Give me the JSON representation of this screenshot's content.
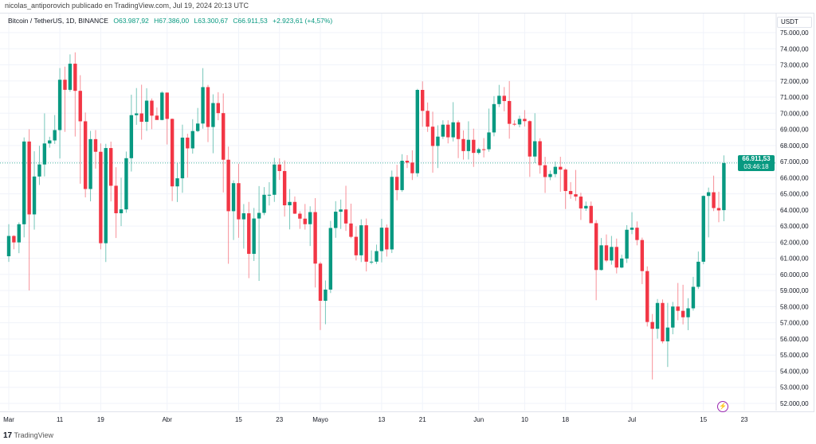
{
  "header": {
    "published": "nicolas_antiporovich publicado en TradingView.com, Jul 19, 2024 20:13 UTC"
  },
  "legend": {
    "symbol": "Bitcoin / TetherUS, 1D, BINANCE",
    "open": "O63.987,92",
    "high": "H67.386,00",
    "low": "L63.300,67",
    "close": "C66.911,53",
    "change": "+2.923,61 (+4,57%)"
  },
  "price_axis": {
    "currency": "USDT",
    "current_price": "66.911,53",
    "countdown": "03:46:18"
  },
  "footer": {
    "logo": "TradingView",
    "logo_mark": "17"
  },
  "colors": {
    "up": "#089981",
    "down": "#f23645",
    "grid": "#f0f3fa"
  },
  "chart_data": {
    "type": "candlestick",
    "title": "Bitcoin / TetherUS, 1D, BINANCE",
    "ylim": [
      51500,
      75500
    ],
    "yticks": [
      52000,
      53000,
      54000,
      55000,
      56000,
      57000,
      58000,
      59000,
      60000,
      61000,
      62000,
      63000,
      64000,
      65000,
      66000,
      67000,
      68000,
      69000,
      70000,
      71000,
      72000,
      73000,
      74000,
      75000
    ],
    "ytick_labels": [
      "52.000,00",
      "53.000,00",
      "54.000,00",
      "55.000,00",
      "56.000,00",
      "57.000,00",
      "58.000,00",
      "59.000,00",
      "60.000,00",
      "61.000,00",
      "62.000,00",
      "63.000,00",
      "64.000,00",
      "65.000,00",
      "66.000,00",
      "67.000,00",
      "68.000,00",
      "69.000,00",
      "70.000,00",
      "71.000,00",
      "72.000,00",
      "73.000,00",
      "74.000,00",
      "75.000,00"
    ],
    "xticks": [
      {
        "label": "Mar",
        "day": 0
      },
      {
        "label": "11",
        "day": 10
      },
      {
        "label": "19",
        "day": 18
      },
      {
        "label": "Abr",
        "day": 31
      },
      {
        "label": "15",
        "day": 45
      },
      {
        "label": "23",
        "day": 53
      },
      {
        "label": "Mayo",
        "day": 61
      },
      {
        "label": "13",
        "day": 73
      },
      {
        "label": "21",
        "day": 81
      },
      {
        "label": "Jun",
        "day": 92
      },
      {
        "label": "10",
        "day": 101
      },
      {
        "label": "18",
        "day": 109
      },
      {
        "label": "Jul",
        "day": 122
      },
      {
        "label": "15",
        "day": 136
      },
      {
        "label": "23",
        "day": 144
      }
    ],
    "start_date": "2024-03-01",
    "ohlc": [
      [
        61130,
        63114,
        60777,
        62387
      ],
      [
        62387,
        62433,
        61561,
        61987
      ],
      [
        61987,
        63231,
        61320,
        63113
      ],
      [
        63113,
        68499,
        62300,
        68245
      ],
      [
        68245,
        69000,
        59005,
        63724
      ],
      [
        63724,
        67641,
        62779,
        66074
      ],
      [
        66074,
        67980,
        65551,
        66823
      ],
      [
        66823,
        69990,
        66082,
        68124
      ],
      [
        68124,
        68541,
        67861,
        68313
      ],
      [
        68313,
        69887,
        68094,
        68955
      ],
      [
        68955,
        72800,
        67194,
        72078
      ],
      [
        72078,
        72890,
        68845,
        71452
      ],
      [
        71452,
        73650,
        71333,
        73072
      ],
      [
        73072,
        73777,
        68555,
        71388
      ],
      [
        71388,
        72357,
        65630,
        69499
      ],
      [
        69499,
        70043,
        64780,
        65300
      ],
      [
        65300,
        68904,
        64533,
        68393
      ],
      [
        68393,
        68956,
        66565,
        67609
      ],
      [
        67609,
        68124,
        61555,
        61937
      ],
      [
        61937,
        68100,
        60775,
        67840
      ],
      [
        67840,
        68240,
        64529,
        65501
      ],
      [
        65501,
        66650,
        62260,
        63796
      ],
      [
        63796,
        65999,
        63000,
        64037
      ],
      [
        64037,
        67622,
        63825,
        67211
      ],
      [
        67211,
        71150,
        66385,
        69880
      ],
      [
        69880,
        71561,
        69280,
        69988
      ],
      [
        69988,
        71769,
        68359,
        69469
      ],
      [
        69469,
        71552,
        68903,
        70780
      ],
      [
        70780,
        70916,
        69009,
        69850
      ],
      [
        69850,
        70355,
        69601,
        69582
      ],
      [
        69582,
        71366,
        69562,
        71280
      ],
      [
        71280,
        71288,
        68062,
        69649
      ],
      [
        69649,
        69674,
        64550,
        65463
      ],
      [
        65463,
        66903,
        64493,
        65963
      ],
      [
        65963,
        69291,
        65064,
        68487
      ],
      [
        68487,
        68725,
        66011,
        67820
      ],
      [
        67820,
        69629,
        67491,
        68896
      ],
      [
        68896,
        70326,
        68824,
        69360
      ],
      [
        69360,
        72797,
        69043,
        71620
      ],
      [
        71620,
        71758,
        68210,
        69146
      ],
      [
        69146,
        71172,
        67518,
        70631
      ],
      [
        70631,
        71305,
        69567,
        70006
      ],
      [
        70006,
        71227,
        65086,
        67116
      ],
      [
        67116,
        67931,
        60660,
        63924
      ],
      [
        63924,
        65840,
        62134,
        65661
      ],
      [
        65661,
        66867,
        62274,
        63419
      ],
      [
        63419,
        64365,
        61600,
        63793
      ],
      [
        63793,
        64499,
        59768,
        61277
      ],
      [
        61277,
        64125,
        60833,
        63470
      ],
      [
        63470,
        65481,
        59600,
        63818
      ],
      [
        63818,
        65420,
        63678,
        64941
      ],
      [
        64941,
        65723,
        64278,
        64941
      ],
      [
        64941,
        67232,
        64500,
        66819
      ],
      [
        66819,
        67199,
        65864,
        66414
      ],
      [
        66414,
        67075,
        63589,
        64289
      ],
      [
        64289,
        65297,
        62794,
        64498
      ],
      [
        64498,
        64837,
        63747,
        63770
      ],
      [
        63770,
        63923,
        62824,
        63461
      ],
      [
        63461,
        64370,
        62781,
        63118
      ],
      [
        63118,
        64228,
        61765,
        63866
      ],
      [
        63866,
        64734,
        59191,
        60672
      ],
      [
        60672,
        60780,
        56552,
        58364
      ],
      [
        58364,
        59625,
        56911,
        59060
      ],
      [
        59060,
        63320,
        58848,
        62882
      ],
      [
        62882,
        64545,
        62274,
        63891
      ],
      [
        63891,
        64646,
        62822,
        64031
      ],
      [
        64031,
        65500,
        62700,
        63161
      ],
      [
        63161,
        64390,
        62250,
        62334
      ],
      [
        62334,
        62985,
        60866,
        61187
      ],
      [
        61187,
        63421,
        60769,
        63049
      ],
      [
        63049,
        63469,
        60187,
        60792
      ],
      [
        60792,
        61490,
        60631,
        60793
      ],
      [
        60793,
        61850,
        60650,
        61448
      ],
      [
        61448,
        63450,
        60749,
        62901
      ],
      [
        62901,
        63099,
        61108,
        61552
      ],
      [
        61552,
        66444,
        61330,
        66054
      ],
      [
        66054,
        66800,
        64600,
        65231
      ],
      [
        65231,
        67459,
        65119,
        67051
      ],
      [
        67051,
        67400,
        66600,
        66940
      ],
      [
        66940,
        67700,
        65857,
        66278
      ],
      [
        66278,
        71515,
        66060,
        71446
      ],
      [
        71446,
        71979,
        69162,
        70148
      ],
      [
        70148,
        70666,
        68842,
        69166
      ],
      [
        69166,
        70096,
        66312,
        67970
      ],
      [
        67970,
        69250,
        66600,
        68549
      ],
      [
        68549,
        69562,
        68406,
        69290
      ],
      [
        69290,
        69562,
        68128,
        68507
      ],
      [
        68507,
        70687,
        68250,
        69436
      ],
      [
        69436,
        69558,
        67215,
        68398
      ],
      [
        68398,
        68935,
        67124,
        67652
      ],
      [
        67652,
        69500,
        67131,
        68352
      ],
      [
        68352,
        69044,
        66670,
        67540
      ],
      [
        67540,
        67856,
        67443,
        67766
      ],
      [
        67766,
        68460,
        67257,
        67765
      ],
      [
        67765,
        70288,
        67612,
        68809
      ],
      [
        68809,
        71063,
        68567,
        70567
      ],
      [
        70567,
        71758,
        70383,
        71082
      ],
      [
        71082,
        71625,
        70119,
        70757
      ],
      [
        70757,
        71997,
        68420,
        69342
      ],
      [
        69342,
        69563,
        69210,
        69305
      ],
      [
        69305,
        69850,
        69125,
        69648
      ],
      [
        69648,
        70195,
        69172,
        69508
      ],
      [
        69508,
        69556,
        66051,
        67314
      ],
      [
        67314,
        69999,
        66905,
        68263
      ],
      [
        68263,
        68449,
        66251,
        66773
      ],
      [
        66773,
        67294,
        65056,
        66043
      ],
      [
        66043,
        66445,
        65848,
        66228
      ],
      [
        66228,
        66998,
        66034,
        66676
      ],
      [
        66676,
        67298,
        65130,
        66504
      ],
      [
        66504,
        66588,
        64060,
        65175
      ],
      [
        65175,
        65727,
        64693,
        64974
      ],
      [
        64974,
        66482,
        64560,
        64828
      ],
      [
        64828,
        65066,
        63379,
        64096
      ],
      [
        64096,
        64520,
        63943,
        64252
      ],
      [
        64252,
        64521,
        63178,
        63180
      ],
      [
        63180,
        63369,
        58402,
        60277
      ],
      [
        60277,
        62258,
        60239,
        61806
      ],
      [
        61806,
        62480,
        60765,
        60864
      ],
      [
        60864,
        62389,
        60606,
        61706
      ],
      [
        61706,
        62225,
        60063,
        60427
      ],
      [
        60427,
        61224,
        60383,
        60986
      ],
      [
        60986,
        63058,
        60712,
        62772
      ],
      [
        62772,
        63861,
        62497,
        62899
      ],
      [
        62899,
        63288,
        61806,
        62135
      ],
      [
        62135,
        62285,
        59400,
        60208
      ],
      [
        60208,
        60498,
        56771,
        57050
      ],
      [
        57050,
        57546,
        53485,
        56628
      ],
      [
        56628,
        58475,
        56018,
        58230
      ],
      [
        58230,
        58449,
        55724,
        55849
      ],
      [
        55849,
        58236,
        54260,
        56705
      ],
      [
        56705,
        58296,
        56289,
        58009
      ],
      [
        58009,
        59470,
        57157,
        57742
      ],
      [
        57742,
        59359,
        56900,
        57344
      ],
      [
        57344,
        58526,
        56542,
        57899
      ],
      [
        57899,
        59850,
        57756,
        59231
      ],
      [
        59231,
        61420,
        59096,
        60788
      ],
      [
        60788,
        64900,
        60632,
        64870
      ],
      [
        64870,
        65388,
        62300,
        65097
      ],
      [
        65097,
        66128,
        63929,
        64118
      ],
      [
        64118,
        65133,
        63238,
        63974
      ],
      [
        63987.92,
        67386,
        63300.67,
        66911.53
      ]
    ],
    "last_price": 66911.53
  }
}
